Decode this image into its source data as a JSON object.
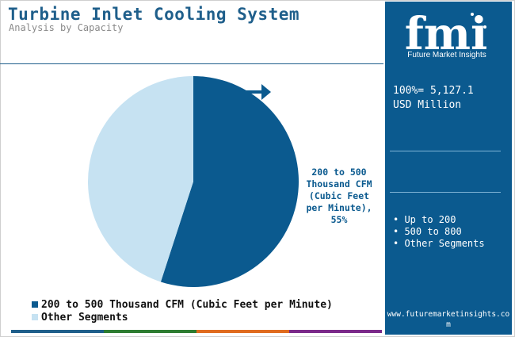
{
  "header": {
    "title": "Turbine Inlet Cooling System",
    "subtitle": "Analysis by Capacity"
  },
  "chart_data": {
    "type": "pie",
    "title": "Turbine Inlet Cooling System",
    "subtitle": "Analysis by Capacity",
    "slices": [
      {
        "label": "200 to 500 Thousand CFM (Cubic Feet per Minute)",
        "value": 55,
        "color": "#0b5a8f"
      },
      {
        "label": "Other Segments",
        "value": 45,
        "color": "#c6e2f2"
      }
    ],
    "data_label": "200 to 500 Thousand CFM (Cubic Feet per Minute), 55%",
    "legend_placement": "bottom-left"
  },
  "pie_label_lines": [
    "200 to 500",
    "Thousand CFM",
    "(Cubic Feet",
    "per Minute),",
    "55%"
  ],
  "legend": {
    "items": [
      {
        "label": "200 to 500 Thousand CFM (Cubic Feet per Minute)",
        "color": "#0b5a8f"
      },
      {
        "label": "Other Segments",
        "color": "#c6e2f2"
      }
    ]
  },
  "sidebar": {
    "logo_text": "fmi",
    "logo_subtitle": "Future Market Insights",
    "total_line1": "100%= 5,127.1",
    "total_line2": "USD Million",
    "segments": [
      "Up to 200",
      "500 to 800",
      "Other Segments"
    ],
    "website_line1": "www.futuremarketinsights.co",
    "website_line2": "m",
    "background_color": "#0b5a8f"
  },
  "colors": {
    "primary": "#0b5a8f",
    "secondary": "#c6e2f2",
    "title": "#1f5f8b",
    "bottom_bar": [
      "#1f5f8b",
      "#2e7d32",
      "#e06c1f",
      "#7b2a8a"
    ]
  },
  "icons": {
    "arrow": "right-arrow-icon"
  }
}
